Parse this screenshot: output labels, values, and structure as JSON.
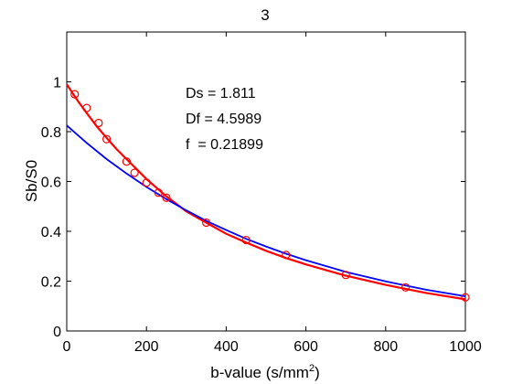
{
  "chart_data": {
    "type": "scatter",
    "title": "3",
    "xlabel": {
      "text": "b-value (s/mm",
      "sup": "2",
      "close": ")"
    },
    "ylabel": "Sb/S0",
    "xlim": [
      0,
      1000
    ],
    "ylim": [
      0,
      1.2
    ],
    "xticks": [
      0,
      200,
      400,
      600,
      800,
      1000
    ],
    "yticks": [
      0,
      0.2,
      0.4,
      0.6,
      0.8,
      1
    ],
    "grid": false,
    "annotations": [
      "Ds = 1.811",
      "Df = 4.5989",
      "f  = 0.21899"
    ],
    "colors": {
      "points": "#ff0000",
      "biexp_fit": "#ff0000",
      "mono_fit": "#0000ff",
      "axes": "#000000"
    },
    "series": [
      {
        "kind": "points",
        "x": [
          20,
          50,
          80,
          100,
          150,
          170,
          200,
          230,
          250,
          350,
          450,
          550,
          700,
          850,
          1000
        ],
        "y": [
          0.95,
          0.895,
          0.835,
          0.77,
          0.68,
          0.635,
          0.595,
          0.555,
          0.535,
          0.435,
          0.365,
          0.305,
          0.225,
          0.175,
          0.135
        ]
      },
      {
        "kind": "line",
        "x": [
          0,
          25,
          50,
          75,
          100,
          125,
          150,
          175,
          200,
          250,
          300,
          350,
          400,
          450,
          500,
          550,
          600,
          700,
          800,
          900,
          1000
        ],
        "y": [
          0.99,
          0.93,
          0.875,
          0.822,
          0.775,
          0.73,
          0.69,
          0.65,
          0.61,
          0.54,
          0.48,
          0.435,
          0.39,
          0.355,
          0.322,
          0.293,
          0.267,
          0.222,
          0.185,
          0.153,
          0.127
        ]
      },
      {
        "kind": "line",
        "x": [
          0,
          50,
          100,
          150,
          200,
          250,
          300,
          350,
          400,
          450,
          500,
          550,
          600,
          700,
          800,
          900,
          1000
        ],
        "y": [
          0.825,
          0.755,
          0.69,
          0.632,
          0.578,
          0.529,
          0.484,
          0.442,
          0.405,
          0.37,
          0.339,
          0.31,
          0.284,
          0.237,
          0.199,
          0.166,
          0.139
        ]
      }
    ]
  }
}
